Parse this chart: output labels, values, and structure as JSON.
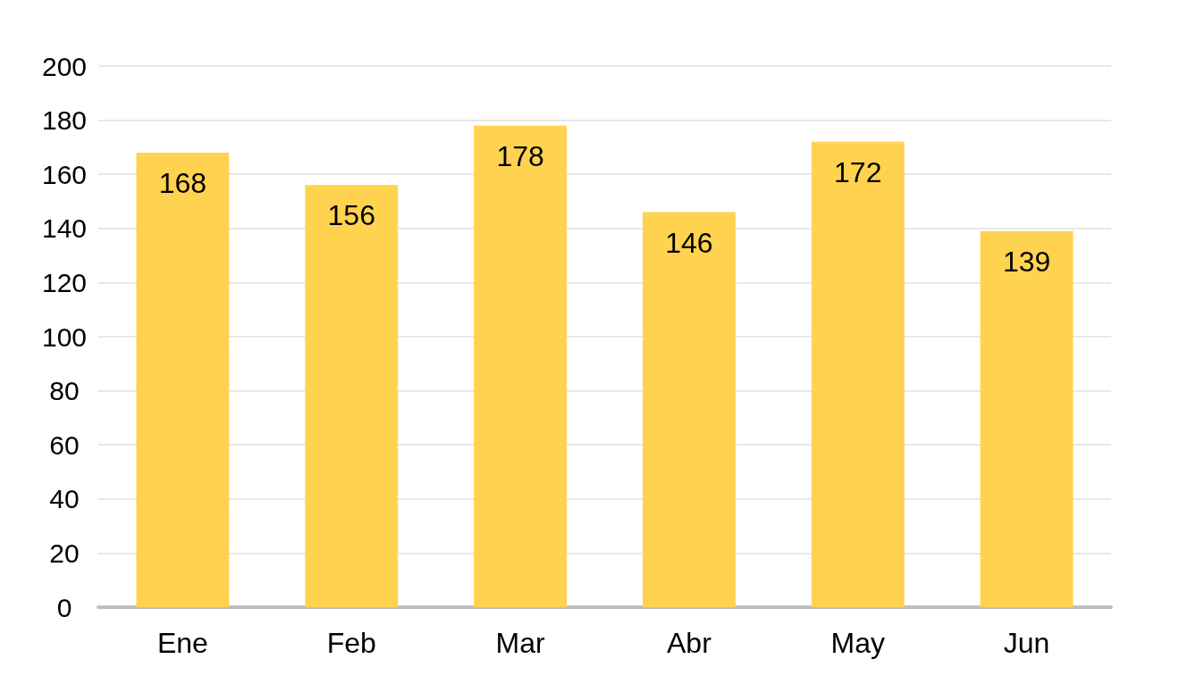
{
  "chart_data": {
    "type": "bar",
    "categories": [
      "Ene",
      "Feb",
      "Mar",
      "Abr",
      "May",
      "Jun"
    ],
    "values": [
      168,
      156,
      178,
      146,
      172,
      139
    ],
    "color": "#ffd34f",
    "ylim": [
      0,
      200
    ],
    "yticks": [
      0,
      20,
      40,
      60,
      80,
      100,
      120,
      140,
      160,
      180,
      200
    ],
    "grid": "y",
    "data_labels": true
  }
}
